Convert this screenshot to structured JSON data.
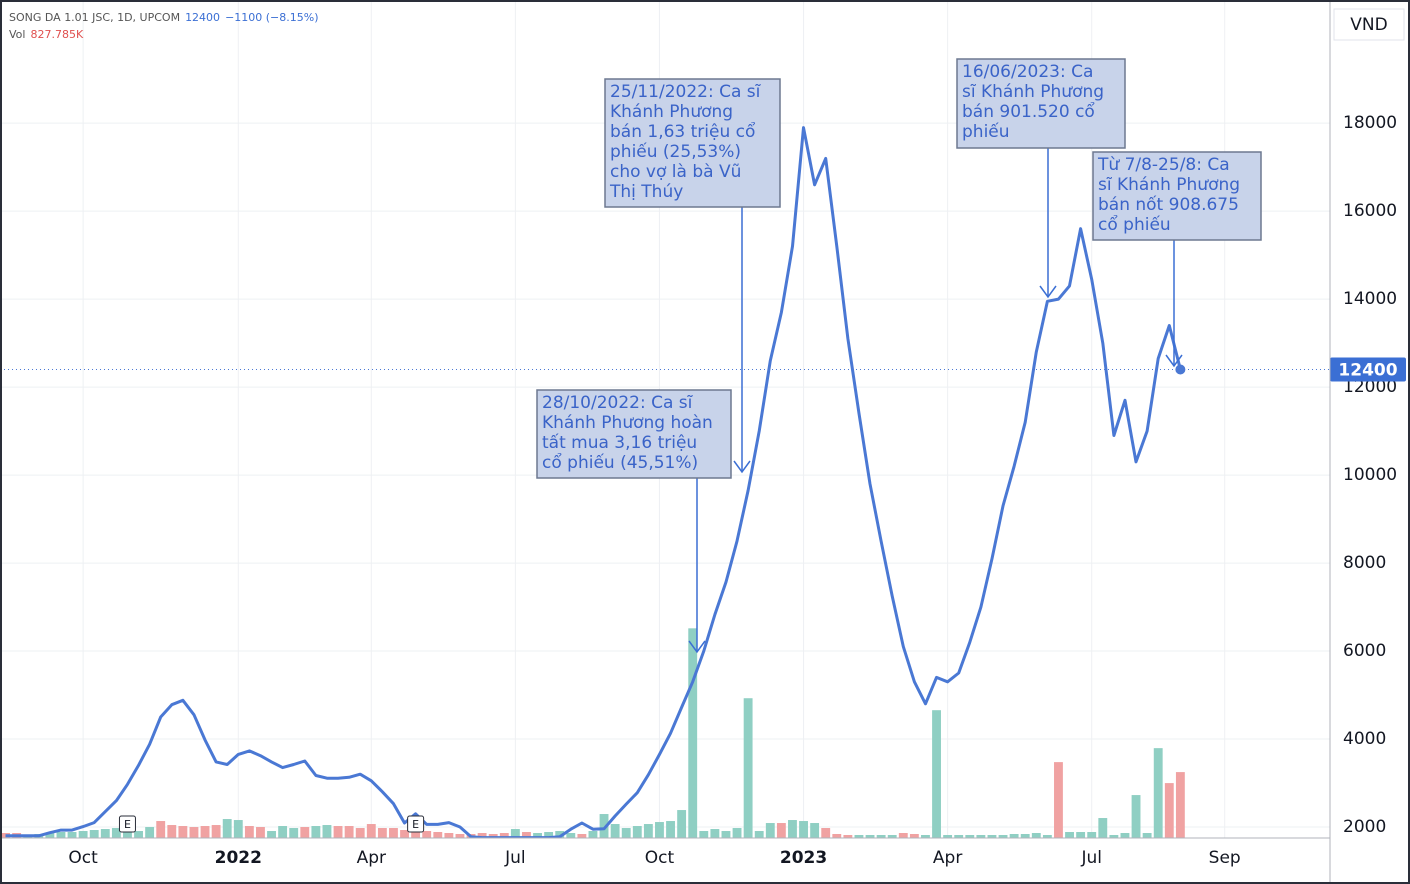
{
  "chart_data": {
    "type": "line",
    "header": {
      "symbol": "SONG DA 1.01 JSC, 1D, UPCOM",
      "change": "−1100 (−8.15%)",
      "vol_label": "Vol",
      "vol_value": "827.785K"
    },
    "currency": "VND",
    "last_price": 12400,
    "categories": [
      null,
      null,
      null,
      null,
      null,
      null,
      null,
      "Oct",
      null,
      null,
      null,
      null,
      null,
      null,
      null,
      null,
      null,
      null,
      null,
      null,
      null,
      "2022",
      null,
      null,
      null,
      null,
      null,
      null,
      null,
      null,
      null,
      null,
      null,
      "Apr",
      null,
      null,
      null,
      null,
      null,
      null,
      null,
      null,
      null,
      null,
      null,
      null,
      "Jul",
      null,
      null,
      null,
      null,
      null,
      null,
      null,
      null,
      null,
      null,
      null,
      null,
      "Oct",
      null,
      null,
      null,
      null,
      null,
      null,
      null,
      null,
      null,
      null,
      null,
      null,
      "2023",
      null,
      null,
      null,
      null,
      null,
      null,
      null,
      null,
      null,
      null,
      null,
      null,
      "Apr",
      null,
      null,
      null,
      null,
      null,
      null,
      null,
      null,
      null,
      null,
      null,
      null,
      "Jul",
      null,
      null,
      null,
      null,
      null,
      null,
      null,
      null,
      null,
      null,
      null,
      "Sep",
      null,
      null,
      null,
      null,
      null,
      null,
      null,
      null,
      null
    ],
    "price": {
      "color": "#4a78d4",
      "values": [
        1800,
        1800,
        1800,
        1800,
        1870,
        1930,
        1930,
        2010,
        2100,
        2350,
        2600,
        2970,
        3400,
        3880,
        4500,
        4780,
        4880,
        4550,
        3980,
        3480,
        3420,
        3650,
        3730,
        3620,
        3480,
        3350,
        3420,
        3500,
        3170,
        3110,
        3110,
        3130,
        3200,
        3050,
        2800,
        2530,
        2090,
        2300,
        2060,
        2060,
        2100,
        2000,
        1780,
        1760,
        1760,
        1760,
        1760,
        1760,
        1760,
        1760,
        1780,
        1950,
        2090,
        1950,
        1960,
        2250,
        2520,
        2780,
        3190,
        3650,
        4130,
        4720,
        5300,
        6000,
        6830,
        7570,
        8500,
        9650,
        11000,
        12600,
        13700,
        15200,
        17900,
        16600,
        17200,
        15200,
        13100,
        11400,
        9800,
        8500,
        7250,
        6100,
        5300,
        4800,
        5400,
        5300,
        5500,
        6200,
        7000,
        8100,
        9300,
        10200,
        11200,
        12800,
        13950,
        14000,
        14300,
        15600,
        14450,
        13000,
        10900,
        11700,
        10300,
        11000,
        12650,
        13400,
        12400,
        null,
        null,
        null,
        null,
        null,
        null,
        null,
        null,
        null,
        null,
        null,
        null,
        null
      ]
    },
    "volume": {
      "ylim": [
        0,
        2650000
      ],
      "values": [
        62700,
        62700,
        37620,
        50160,
        62700,
        75240,
        75240,
        87780,
        100320,
        112860,
        125400,
        112860,
        87780,
        137940,
        213180,
        163020,
        150480,
        137940,
        150480,
        163020,
        238260,
        225720,
        150480,
        137940,
        87780,
        150480,
        125400,
        137940,
        150480,
        163020,
        150480,
        150480,
        125400,
        175560,
        125400,
        125400,
        100320,
        112860,
        87780,
        75240,
        62700,
        50160,
        50160,
        62700,
        50160,
        62700,
        112860,
        75240,
        62700,
        75240,
        87780,
        62700,
        50160,
        87780,
        300960,
        175560,
        125400,
        150480,
        175560,
        200640,
        213180,
        351120,
        2633400,
        87780,
        112860,
        87780,
        125400,
        1755600,
        87780,
        188100,
        188100,
        225720,
        213180,
        188100,
        125400,
        50160,
        37620,
        37620,
        37620,
        37620,
        37620,
        62700,
        50160,
        37620,
        1605120,
        37620,
        37620,
        37620,
        37620,
        37620,
        37620,
        50160,
        50160,
        62700,
        37620,
        953040,
        75240,
        75240,
        75240,
        250800,
        37620,
        62700,
        539220,
        62700,
        1128600,
        689700,
        827785,
        null,
        null,
        null,
        null,
        null,
        null,
        null,
        null,
        null,
        null,
        null,
        null,
        null
      ],
      "colors": [
        "#f0a2a2",
        "#f0a2a2",
        "#8fcfc3",
        "#8fcfc3",
        "#8fcfc3",
        "#8fcfc3",
        "#8fcfc3",
        "#8fcfc3",
        "#8fcfc3",
        "#8fcfc3",
        "#8fcfc3",
        "#8fcfc3",
        "#8fcfc3",
        "#8fcfc3",
        "#f0a2a2",
        "#f0a2a2",
        "#f0a2a2",
        "#f0a2a2",
        "#f0a2a2",
        "#f0a2a2",
        "#8fcfc3",
        "#8fcfc3",
        "#f0a2a2",
        "#f0a2a2",
        "#8fcfc3",
        "#8fcfc3",
        "#8fcfc3",
        "#f0a2a2",
        "#8fcfc3",
        "#8fcfc3",
        "#f0a2a2",
        "#f0a2a2",
        "#f0a2a2",
        "#f0a2a2",
        "#f0a2a2",
        "#f0a2a2",
        "#f0a2a2",
        "#f0a2a2",
        "#f0a2a2",
        "#f0a2a2",
        "#f0a2a2",
        "#f0a2a2",
        "#f0a2a2",
        "#f0a2a2",
        "#f0a2a2",
        "#f0a2a2",
        "#8fcfc3",
        "#f0a2a2",
        "#8fcfc3",
        "#8fcfc3",
        "#8fcfc3",
        "#8fcfc3",
        "#f0a2a2",
        "#8fcfc3",
        "#8fcfc3",
        "#8fcfc3",
        "#8fcfc3",
        "#8fcfc3",
        "#8fcfc3",
        "#8fcfc3",
        "#8fcfc3",
        "#8fcfc3",
        "#8fcfc3",
        "#8fcfc3",
        "#8fcfc3",
        "#8fcfc3",
        "#8fcfc3",
        "#8fcfc3",
        "#8fcfc3",
        "#8fcfc3",
        "#f0a2a2",
        "#8fcfc3",
        "#8fcfc3",
        "#8fcfc3",
        "#f0a2a2",
        "#f0a2a2",
        "#f0a2a2",
        "#8fcfc3",
        "#8fcfc3",
        "#8fcfc3",
        "#8fcfc3",
        "#f0a2a2",
        "#f0a2a2",
        "#8fcfc3",
        "#8fcfc3",
        "#8fcfc3",
        "#8fcfc3",
        "#8fcfc3",
        "#8fcfc3",
        "#8fcfc3",
        "#8fcfc3",
        "#8fcfc3",
        "#8fcfc3",
        "#8fcfc3",
        "#8fcfc3",
        "#f0a2a2",
        "#8fcfc3",
        "#8fcfc3",
        "#8fcfc3",
        "#8fcfc3",
        "#8fcfc3",
        "#8fcfc3",
        "#8fcfc3",
        "#8fcfc3",
        "#8fcfc3",
        "#f0a2a2",
        "#f0a2a2",
        null,
        null,
        null,
        null,
        null,
        null,
        null,
        null,
        null,
        null,
        null,
        null,
        null
      ]
    },
    "ylim": [
      1750,
      20800
    ],
    "yticks": [
      2000,
      4000,
      6000,
      8000,
      10000,
      12000,
      14000,
      16000,
      18000
    ],
    "grid": true,
    "events": [
      "E",
      "E"
    ],
    "annotations": [
      {
        "lines": [
          "28/10/2022: Ca sĩ",
          "Khánh Phương hoàn",
          "tất mua 3,16 triệu",
          "cổ phiếu (45,51%)"
        ]
      },
      {
        "lines": [
          "25/11/2022: Ca sĩ",
          "Khánh Phương",
          "bán 1,63 triệu cổ",
          "phiếu (25,53%)",
          "cho vợ là bà Vũ",
          "Thị Thúy"
        ]
      },
      {
        "lines": [
          "16/06/2023: Ca",
          "sĩ Khánh Phương",
          "bán 901.520 cổ",
          "phiếu"
        ]
      },
      {
        "lines": [
          "Từ 7/8-25/8: Ca",
          "sĩ Khánh Phương",
          "bán nốt 908.675",
          "cổ phiếu"
        ]
      }
    ]
  }
}
